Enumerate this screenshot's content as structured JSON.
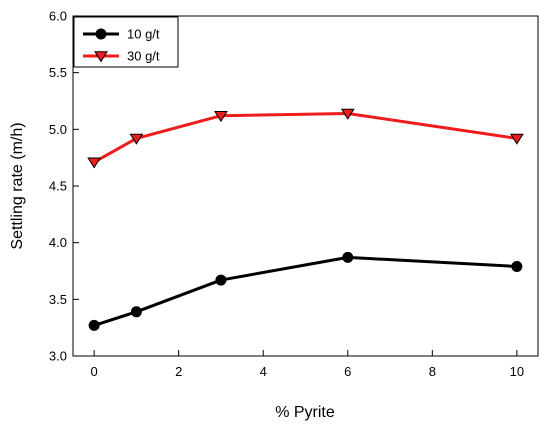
{
  "chart_data": {
    "type": "line",
    "title": "",
    "xlabel": "% Pyrite",
    "ylabel": "Settling rate (m/h)",
    "xlim": [
      -0.5,
      10.5
    ],
    "ylim": [
      3.0,
      6.0
    ],
    "xticks": [
      0,
      2,
      4,
      6,
      8,
      10
    ],
    "yticks": [
      3.0,
      3.5,
      4.0,
      4.5,
      5.0,
      5.5,
      6.0
    ],
    "xtick_labels": [
      "0",
      "2",
      "4",
      "6",
      "8",
      "10"
    ],
    "ytick_labels": [
      "3.0",
      "3.5",
      "4.0",
      "4.5",
      "5.0",
      "5.5",
      "6.0"
    ],
    "grid": false,
    "legend": "top-left",
    "series": [
      {
        "name": "10 g/t",
        "color": "#000000",
        "marker": "circle",
        "x": [
          0,
          1,
          3,
          6,
          10
        ],
        "y": [
          3.27,
          3.39,
          3.67,
          3.87,
          3.79
        ]
      },
      {
        "name": "30 g/t",
        "color": "#ee1c1c",
        "marker": "triangle-down",
        "x": [
          0,
          1,
          3,
          6,
          10
        ],
        "y": [
          4.71,
          4.92,
          5.12,
          5.14,
          4.92
        ]
      }
    ]
  }
}
